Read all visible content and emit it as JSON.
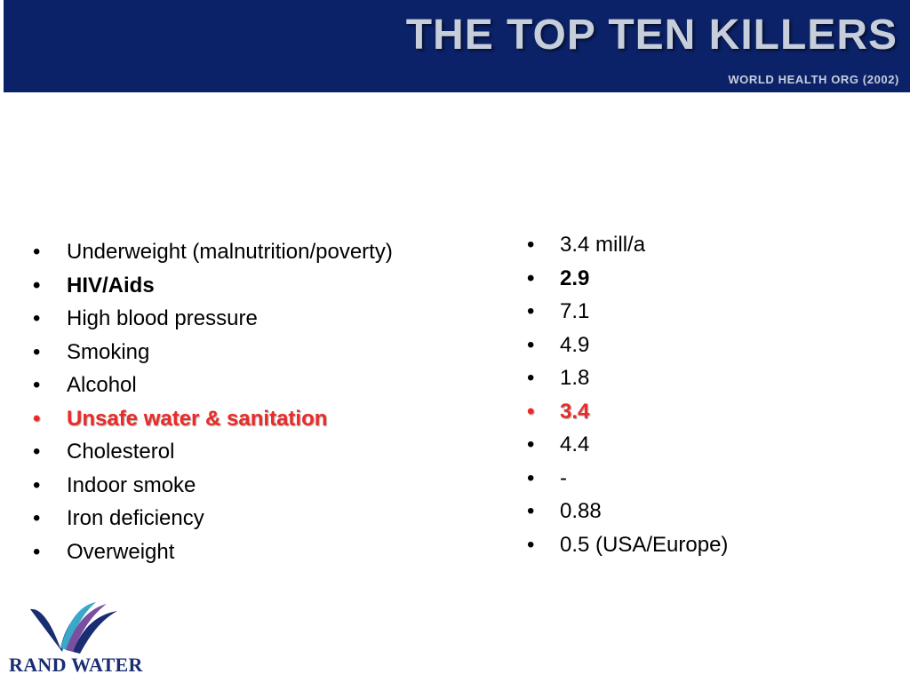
{
  "header": {
    "title": "THE TOP TEN KILLERS",
    "subtitle": "WORLD HEALTH ORG (2002)",
    "background": "#0c2268",
    "text_color": "#c7cedb"
  },
  "bullet_char": "•",
  "left_items": [
    {
      "text": "Underweight (malnutrition/poverty)",
      "style": "normal"
    },
    {
      "text": "HIV/Aids",
      "style": "bold"
    },
    {
      "text": "High blood pressure",
      "style": "normal"
    },
    {
      "text": "Smoking",
      "style": "normal"
    },
    {
      "text": "Alcohol",
      "style": "normal"
    },
    {
      "text": "Unsafe water & sanitation",
      "style": "highlight"
    },
    {
      "text": "Cholesterol",
      "style": "normal"
    },
    {
      "text": "Indoor smoke",
      "style": "normal"
    },
    {
      "text": "Iron deficiency",
      "style": "normal"
    },
    {
      "text": "Overweight",
      "style": "normal"
    }
  ],
  "right_items": [
    {
      "text": "3.4 mill/a",
      "style": "normal"
    },
    {
      "text": "2.9",
      "style": "bold"
    },
    {
      "text": "7.1",
      "style": "normal"
    },
    {
      "text": "4.9",
      "style": "normal"
    },
    {
      "text": "1.8",
      "style": "normal"
    },
    {
      "text": "3.4",
      "style": "highlight"
    },
    {
      "text": "4.4",
      "style": "normal"
    },
    {
      "text": "-",
      "style": "normal"
    },
    {
      "text": "0.88",
      "style": "normal"
    },
    {
      "text": "0.5 (USA/Europe)",
      "style": "normal"
    }
  ],
  "highlight_color": "#ea2b27",
  "logo": {
    "text": "RAND WATER",
    "icon": "rand-water-wave-icon",
    "colors": [
      "#1a2d72",
      "#3aa8c9",
      "#7b4fa0"
    ]
  }
}
